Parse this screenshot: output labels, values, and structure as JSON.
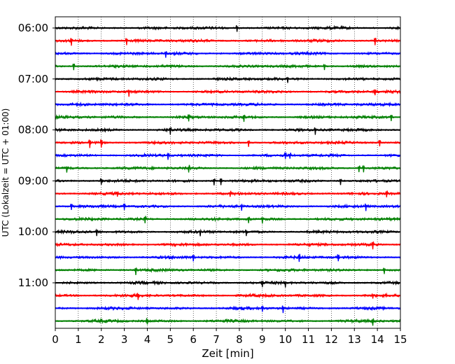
{
  "chart_data": {
    "type": "line",
    "title": "",
    "xlabel": "Zeit  [min]",
    "ylabel": "UTC (Lokalzeit = UTC + 01:00)",
    "xlim": [
      0,
      15
    ],
    "x_ticks": [
      "0",
      "1",
      "2",
      "3",
      "4",
      "5",
      "6",
      "7",
      "8",
      "9",
      "10",
      "11",
      "12",
      "13",
      "14",
      "15"
    ],
    "y_tick_labels": [
      "06:00",
      "07:00",
      "08:00",
      "09:00",
      "10:00",
      "11:00"
    ],
    "y_tick_rows": [
      0,
      4,
      8,
      12,
      16,
      20
    ],
    "row_interval_minutes": 15,
    "row_count": 24,
    "trace_colors": [
      "#000000",
      "#ff0000",
      "#0000ff",
      "#008000"
    ],
    "vertical_grid": "dotted, every minute",
    "events": [
      {
        "row": 0,
        "t": [
          7.9
        ]
      },
      {
        "row": 1,
        "t": [
          0.7,
          3.1,
          13.9
        ]
      },
      {
        "row": 2,
        "t": [
          4.8
        ]
      },
      {
        "row": 3,
        "t": [
          0.8,
          11.7
        ]
      },
      {
        "row": 4,
        "t": [
          10.1
        ]
      },
      {
        "row": 5,
        "t": [
          3.2,
          13.9
        ]
      },
      {
        "row": 6,
        "t": []
      },
      {
        "row": 7,
        "t": [
          5.8,
          8.2,
          14.6
        ]
      },
      {
        "row": 8,
        "t": [
          5.0,
          11.3
        ]
      },
      {
        "row": 9,
        "t": [
          1.5,
          2.0,
          8.4,
          14.1
        ]
      },
      {
        "row": 10,
        "t": [
          4.9,
          10.0,
          10.2
        ]
      },
      {
        "row": 11,
        "t": [
          0.5,
          5.8,
          13.2,
          13.4
        ]
      },
      {
        "row": 12,
        "t": [
          2.0,
          6.9,
          7.2,
          12.4
        ]
      },
      {
        "row": 13,
        "t": [
          2.7,
          7.6,
          14.4
        ]
      },
      {
        "row": 14,
        "t": [
          0.7,
          3.0,
          8.1,
          13.5
        ]
      },
      {
        "row": 15,
        "t": [
          3.9,
          8.4,
          9.0
        ]
      },
      {
        "row": 16,
        "t": [
          1.8,
          6.3,
          8.3
        ]
      },
      {
        "row": 17,
        "t": [
          13.8
        ]
      },
      {
        "row": 18,
        "t": [
          6.0,
          10.6,
          12.3
        ]
      },
      {
        "row": 19,
        "t": [
          3.5,
          14.3
        ]
      },
      {
        "row": 20,
        "t": [
          9.0,
          10.0
        ]
      },
      {
        "row": 21,
        "t": [
          3.6,
          13.8
        ]
      },
      {
        "row": 22,
        "t": [
          9.0,
          9.9
        ]
      },
      {
        "row": 23,
        "t": [
          4.0,
          13.8
        ]
      }
    ]
  }
}
